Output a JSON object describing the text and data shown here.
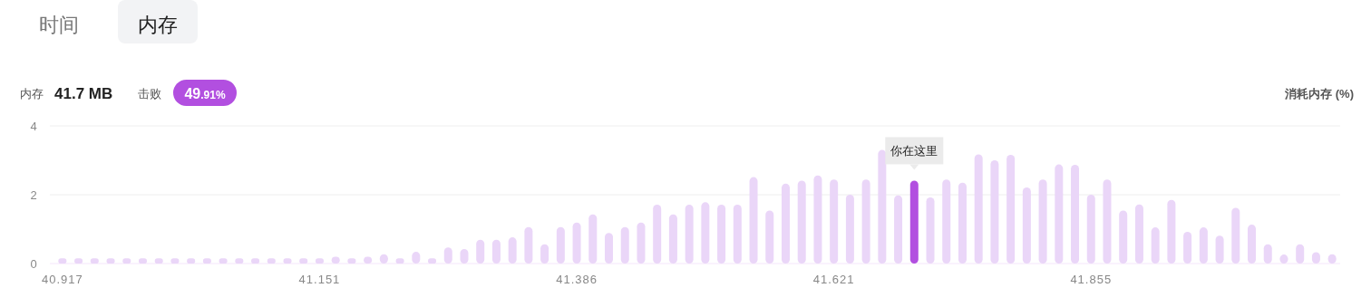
{
  "chart_data": {
    "type": "bar",
    "ylabel": "消耗内存 (%)",
    "grid": "y",
    "ylim": [
      0,
      4
    ],
    "yticks": [
      0,
      2,
      4
    ],
    "categories": [
      "40.917",
      null,
      null,
      null,
      null,
      null,
      null,
      null,
      null,
      null,
      null,
      null,
      null,
      null,
      null,
      null,
      "41.151",
      null,
      null,
      null,
      null,
      null,
      null,
      null,
      null,
      null,
      null,
      null,
      null,
      null,
      null,
      null,
      "41.386",
      null,
      null,
      null,
      null,
      null,
      null,
      null,
      null,
      null,
      null,
      null,
      null,
      null,
      null,
      null,
      "41.621",
      null,
      null,
      null,
      null,
      null,
      null,
      null,
      null,
      null,
      null,
      null,
      null,
      null,
      null,
      null,
      "41.855",
      null,
      null,
      null,
      null,
      null,
      null,
      null,
      null,
      null,
      null,
      null,
      null,
      null,
      null,
      null
    ],
    "values": [
      0.15,
      0.15,
      0.15,
      0.15,
      0.15,
      0.15,
      0.15,
      0.15,
      0.15,
      0.15,
      0.15,
      0.15,
      0.15,
      0.15,
      0.15,
      0.15,
      0.15,
      0.2,
      0.15,
      0.2,
      0.27,
      0.15,
      0.34,
      0.15,
      0.47,
      0.42,
      0.69,
      0.69,
      0.76,
      1.06,
      0.56,
      1.06,
      1.19,
      1.43,
      0.89,
      1.06,
      1.19,
      1.71,
      1.43,
      1.71,
      1.78,
      1.71,
      1.71,
      2.51,
      1.54,
      2.32,
      2.41,
      2.56,
      2.44,
      2.0,
      2.44,
      3.3,
      1.98,
      2.41,
      1.92,
      2.44,
      2.35,
      3.17,
      3.0,
      3.16,
      2.21,
      2.44,
      2.88,
      2.87,
      2.0,
      2.44,
      1.54,
      1.72,
      1.05,
      1.85,
      0.92,
      1.05,
      0.81,
      1.62,
      1.13,
      0.56,
      0.26,
      0.56,
      0.33,
      0.27
    ],
    "colors": [
      "#ead6f8",
      "#ead6f8",
      "#ead6f8",
      "#ead6f8",
      "#ead6f8",
      "#ead6f8",
      "#ead6f8",
      "#ead6f8",
      "#ead6f8",
      "#ead6f8",
      "#ead6f8",
      "#ead6f8",
      "#ead6f8",
      "#ead6f8",
      "#ead6f8",
      "#ead6f8",
      "#ead6f8",
      "#ead6f8",
      "#ead6f8",
      "#ead6f8",
      "#ead6f8",
      "#ead6f8",
      "#ead6f8",
      "#ead6f8",
      "#ead6f8",
      "#ead6f8",
      "#ead6f8",
      "#ead6f8",
      "#ead6f8",
      "#ead6f8",
      "#ead6f8",
      "#ead6f8",
      "#ead6f8",
      "#ead6f8",
      "#ead6f8",
      "#ead6f8",
      "#ead6f8",
      "#ead6f8",
      "#ead6f8",
      "#ead6f8",
      "#ead6f8",
      "#ead6f8",
      "#ead6f8",
      "#ead6f8",
      "#ead6f8",
      "#ead6f8",
      "#ead6f8",
      "#ead6f8",
      "#ead6f8",
      "#ead6f8",
      "#ead6f8",
      "#ead6f8",
      "#ead6f8",
      "#b24fe0",
      "#ead6f8",
      "#ead6f8",
      "#ead6f8",
      "#ead6f8",
      "#ead6f8",
      "#ead6f8",
      "#ead6f8",
      "#ead6f8",
      "#ead6f8",
      "#ead6f8",
      "#ead6f8",
      "#ead6f8",
      "#ead6f8",
      "#ead6f8",
      "#ead6f8",
      "#ead6f8",
      "#ead6f8",
      "#ead6f8",
      "#ead6f8",
      "#ead6f8",
      "#ead6f8",
      "#ead6f8",
      "#ead6f8",
      "#ead6f8",
      "#ead6f8",
      "#ead6f8"
    ],
    "annotations": [
      "时间",
      "内存",
      "内存",
      "41.7 MB",
      "击败",
      "49.91%",
      "你在这里"
    ]
  }
}
